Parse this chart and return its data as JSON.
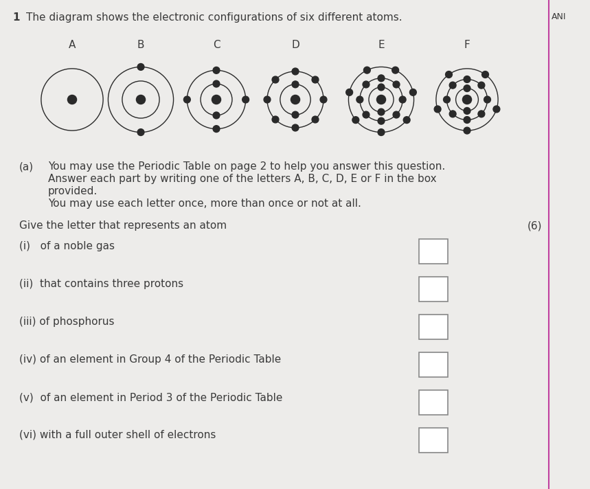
{
  "title_num": "1",
  "title_text": "The diagram shows the electronic configurations of six different atoms.",
  "ani_label": "ANI",
  "background_color": "#edecea",
  "text_color": "#3a3a3a",
  "atom_labels": [
    "A",
    "B",
    "C",
    "D",
    "E",
    "F"
  ],
  "atoms": [
    {
      "label": "A",
      "shells": [
        0.055
      ],
      "electrons_per_shell": [
        0
      ]
    },
    {
      "label": "B",
      "shells": [
        0.033,
        0.058
      ],
      "electrons_per_shell": [
        0,
        2
      ]
    },
    {
      "label": "C",
      "shells": [
        0.028,
        0.052
      ],
      "electrons_per_shell": [
        2,
        4
      ]
    },
    {
      "label": "D",
      "shells": [
        0.027,
        0.05
      ],
      "electrons_per_shell": [
        2,
        8
      ]
    },
    {
      "label": "E",
      "shells": [
        0.022,
        0.038,
        0.058
      ],
      "electrons_per_shell": [
        2,
        8,
        7
      ]
    },
    {
      "label": "F",
      "shells": [
        0.02,
        0.036,
        0.055
      ],
      "electrons_per_shell": [
        2,
        8,
        5
      ]
    }
  ],
  "nucleus_color": "#2a2a2a",
  "electron_color": "#2a2a2a",
  "shell_color": "#2a2a2a",
  "shell_linewidth": 1.0,
  "nucleus_r": 0.008,
  "electron_r": 0.006,
  "vertical_line_x": 0.93,
  "vertical_line_color": "#c040a0",
  "q_intro_lines": [
    "You may use the Periodic Table on page 2 to help you answer this question.",
    "Answer each part by writing one of the letters A, B, C, D, E or F in the box",
    "provided.",
    "You may use each letter once, more than once or not at all."
  ],
  "give_letter_text": "Give the letter that represents an atom",
  "marks_text": "(6)",
  "questions": [
    "(i)   of a noble gas",
    "(ii)  that contains three protons",
    "(iii) of phosphorus",
    "(iv) of an element in Group 4 of the Periodic Table",
    "(v)  of an element in Period 3 of the Periodic Table",
    "(vi) with a full outer shell of electrons"
  ]
}
